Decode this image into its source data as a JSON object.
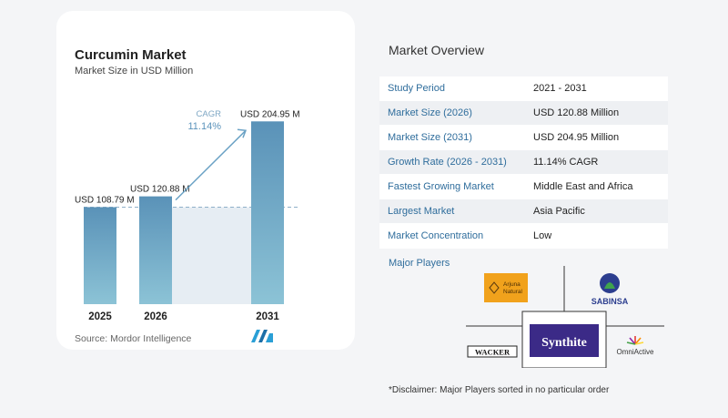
{
  "chart_data": {
    "type": "bar",
    "title": "Curcumin Market",
    "subtitle": "Market Size in USD Million",
    "categories": [
      "2025",
      "2026",
      "2031"
    ],
    "values": [
      108.79,
      120.88,
      204.95
    ],
    "value_labels": [
      "USD 108.79 M",
      "USD 120.88 M",
      "USD 204.95 M"
    ],
    "cagr_label": "CAGR",
    "cagr_value": "11.14%",
    "colors": {
      "bar_top": "#5a92b8",
      "bar_bottom": "#8cc3d6",
      "shade": "#e6edf3",
      "arrow": "#6ba2c5",
      "dash": "#8fb0c9"
    }
  },
  "source": "Source:  Mordor Intelligence",
  "overview": {
    "title": "Market Overview",
    "rows": [
      {
        "label": "Study Period",
        "value": "2021 - 2031"
      },
      {
        "label": "Market Size (2026)",
        "value": "USD 120.88 Million"
      },
      {
        "label": "Market Size (2031)",
        "value": "USD 204.95 Million"
      },
      {
        "label": "Growth Rate (2026 - 2031)",
        "value": "11.14% CAGR"
      },
      {
        "label": "Fastest Growing Market",
        "value": "Middle East and Africa"
      },
      {
        "label": "Largest Market",
        "value": "Asia Pacific"
      },
      {
        "label": "Market Concentration",
        "value": "Low"
      }
    ]
  },
  "players": {
    "title": "Major Players",
    "logos": [
      "Arjuna Natural",
      "SABINSA",
      "Synthite",
      "WACKER",
      "OmniActive"
    ],
    "icons": [
      "arjuna-logo",
      "sabinsa-logo",
      "synthite-logo",
      "wacker-logo",
      "omniactive-logo",
      "mordor-intelligence-logo"
    ]
  },
  "disclaimer": "*Disclaimer: Major Players sorted in no particular order"
}
